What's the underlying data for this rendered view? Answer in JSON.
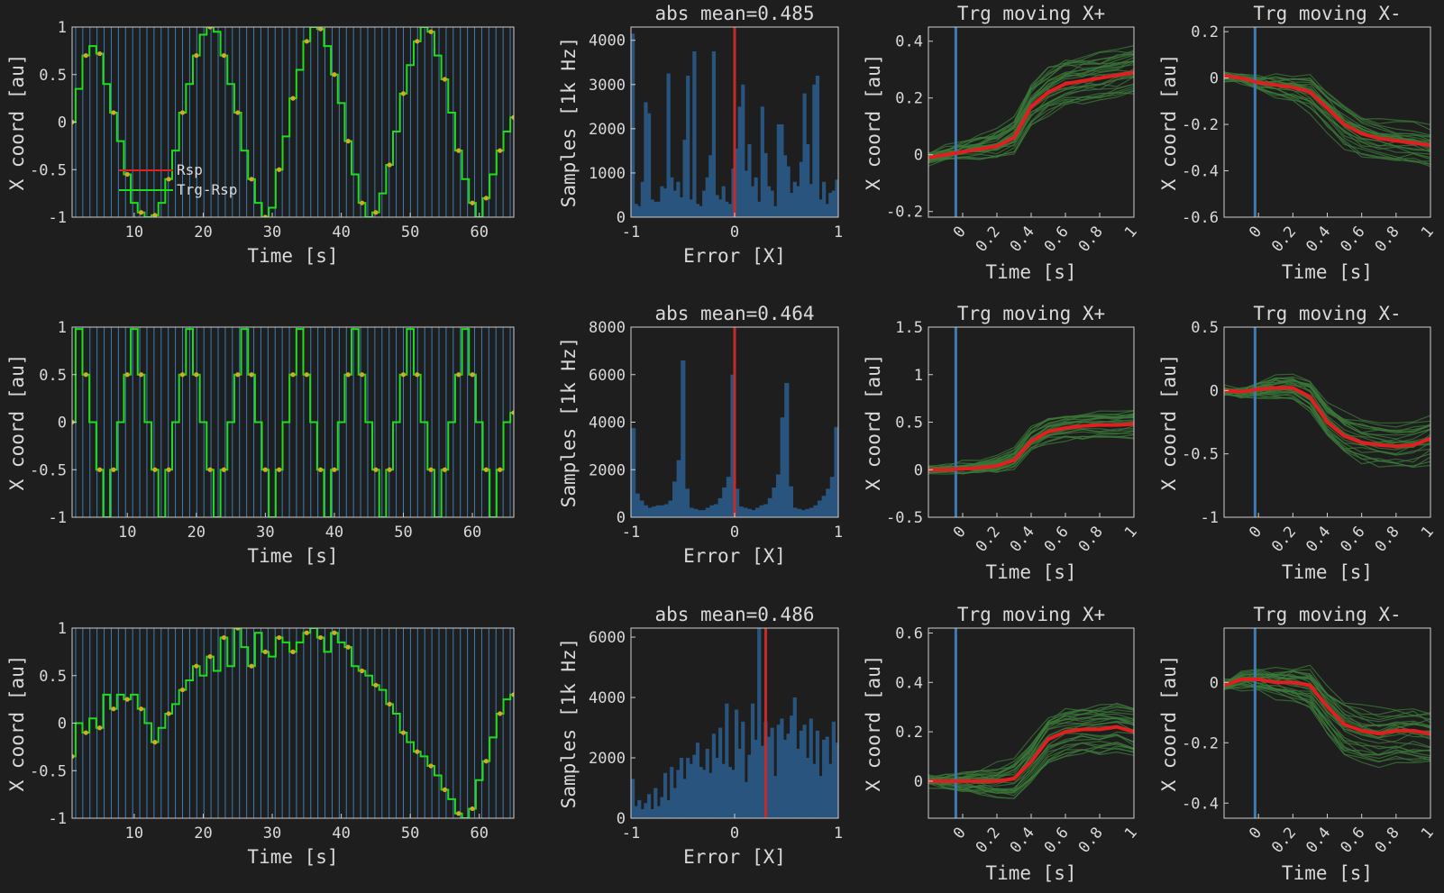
{
  "colors": {
    "background": "#1e1e1e",
    "axes_bg": "#1e1e1e",
    "axis": "#cfcfcf",
    "text": "#d9d9d9",
    "response": "#e02020",
    "target_trace": "#1fdc1f",
    "target_markers": "#d4aa22",
    "event_lines": "#3f88c5",
    "hist_bars": "#28547e",
    "hist_marker": "#c42a2a",
    "trials": "#3b7a3a",
    "mean_trace": "#e02020",
    "onset_line": "#3f7ab2"
  },
  "chart_data": [
    {
      "type": "line",
      "row": 1,
      "panel": "trace",
      "title": "",
      "xlabel": "Time [s]",
      "ylabel": "X coord [au]",
      "xlim": [
        1,
        65
      ],
      "ylim": [
        -1,
        1
      ],
      "xticks": [
        10,
        20,
        30,
        40,
        50,
        60
      ],
      "yticks": [
        -1,
        -0.5,
        0,
        0.5,
        1
      ],
      "ytick_labels": [
        "-1",
        "-0.5",
        "0",
        "0.5",
        "1"
      ],
      "legend": {
        "placement": "lower-left",
        "entries": [
          "Rsp",
          "Trg-Rsp"
        ]
      },
      "series": [
        {
          "name": "Trg-Rsp",
          "x": [
            1,
            2,
            3,
            4,
            5,
            6,
            7,
            8,
            9,
            10,
            11,
            12,
            13,
            14,
            15,
            16,
            17,
            18,
            19,
            20,
            21,
            22,
            23,
            24,
            25,
            26,
            27,
            28,
            29,
            30,
            31,
            32,
            33,
            34,
            35,
            36,
            37,
            38,
            39,
            40,
            41,
            42,
            43,
            44,
            45,
            46,
            47,
            48,
            49,
            50,
            51,
            52,
            53,
            54,
            55,
            56,
            57,
            58,
            59,
            60,
            61,
            62,
            63,
            64,
            65
          ],
          "y": [
            0,
            0.35,
            0.7,
            0.8,
            0.72,
            0.4,
            0.1,
            -0.2,
            -0.55,
            -0.85,
            -0.95,
            -1.0,
            -0.98,
            -0.85,
            -0.6,
            -0.3,
            0.1,
            0.4,
            0.7,
            0.92,
            1.0,
            0.95,
            0.7,
            0.4,
            0.1,
            -0.3,
            -0.6,
            -0.85,
            -1.0,
            -0.9,
            -0.5,
            -0.15,
            0.25,
            0.55,
            0.85,
            1.0,
            0.98,
            0.8,
            0.5,
            0.2,
            -0.2,
            -0.55,
            -0.85,
            -1.0,
            -0.95,
            -0.75,
            -0.45,
            -0.1,
            0.3,
            0.6,
            0.85,
            1.0,
            0.95,
            0.7,
            0.45,
            0.1,
            -0.3,
            -0.6,
            -0.85,
            -1.0,
            -0.8,
            -0.55,
            -0.3,
            -0.1,
            0.05
          ]
        }
      ]
    },
    {
      "type": "bar",
      "row": 1,
      "panel": "histogram",
      "title": "abs mean=0.485",
      "xlabel": "Error [X]",
      "ylabel": "Samples [1k Hz]",
      "xlim": [
        -1,
        1
      ],
      "ylim": [
        0,
        4300
      ],
      "xticks": [
        -1,
        0,
        1
      ],
      "yticks": [
        0,
        1000,
        2000,
        3000,
        4000
      ],
      "marker_x": 0,
      "values": [
        4150,
        300,
        250,
        800,
        2600,
        2350,
        400,
        350,
        350,
        700,
        650,
        3250,
        900,
        600,
        800,
        450,
        1750,
        3200,
        400,
        3750,
        300,
        250,
        600,
        900,
        1400,
        3750,
        500,
        400,
        700,
        350,
        300,
        1100,
        1550,
        2500,
        3000,
        1050,
        1650,
        700,
        900,
        350,
        2500,
        1450,
        700,
        600,
        250,
        2100,
        2100,
        1400,
        1150,
        550,
        800,
        700,
        1250,
        2800,
        1650,
        750,
        3000,
        3200,
        400,
        800,
        300,
        550,
        600,
        850
      ]
    },
    {
      "type": "line",
      "row": 1,
      "panel": "trg-plus",
      "title": "Trg moving X+",
      "xlabel": "Time [s]",
      "ylabel": "X coord [au]",
      "xlim": [
        -0.2,
        1
      ],
      "ylim": [
        -0.22,
        0.45
      ],
      "xticks": [
        0,
        0.2,
        0.4,
        0.6,
        0.8,
        1
      ],
      "yticks": [
        -0.2,
        0,
        0.2,
        0.4
      ],
      "ytick_labels": [
        "-0.2",
        "0",
        "0.2",
        "0.4"
      ],
      "onset_x": -0.04,
      "x": [
        -0.2,
        -0.1,
        0,
        0.1,
        0.2,
        0.3,
        0.4,
        0.5,
        0.6,
        0.7,
        0.8,
        0.9,
        1.0
      ],
      "mean": [
        -0.01,
        0,
        0.01,
        0.02,
        0.03,
        0.06,
        0.17,
        0.22,
        0.25,
        0.26,
        0.27,
        0.28,
        0.29
      ],
      "trial_count": 30,
      "trial_spread": 0.08
    },
    {
      "type": "line",
      "row": 1,
      "panel": "trg-minus",
      "title": "Trg moving X-",
      "xlabel": "Time [s]",
      "ylabel": "X coord [au]",
      "xlim": [
        -0.2,
        1
      ],
      "ylim": [
        -0.6,
        0.22
      ],
      "xticks": [
        0,
        0.2,
        0.4,
        0.6,
        0.8,
        1
      ],
      "yticks": [
        -0.6,
        -0.4,
        -0.2,
        0,
        0.2
      ],
      "ytick_labels": [
        "-0.6",
        "-0.4",
        "-0.2",
        "0",
        "0.2"
      ],
      "onset_x": -0.02,
      "x": [
        -0.2,
        -0.1,
        0,
        0.1,
        0.2,
        0.3,
        0.4,
        0.5,
        0.6,
        0.7,
        0.8,
        0.9,
        1.0
      ],
      "mean": [
        0.01,
        0,
        -0.02,
        -0.03,
        -0.04,
        -0.06,
        -0.13,
        -0.2,
        -0.24,
        -0.26,
        -0.27,
        -0.28,
        -0.29
      ],
      "trial_count": 25,
      "trial_spread": 0.09
    },
    {
      "type": "line",
      "row": 2,
      "panel": "trace",
      "title": "",
      "xlabel": "Time [s]",
      "ylabel": "X coord [au]",
      "xlim": [
        2,
        66
      ],
      "ylim": [
        -1,
        1
      ],
      "xticks": [
        10,
        20,
        30,
        40,
        50,
        60
      ],
      "yticks": [
        -1,
        -0.5,
        0,
        0.5,
        1
      ],
      "ytick_labels": [
        "-1",
        "-0.5",
        "0",
        "0.5",
        "1"
      ],
      "series": [
        {
          "name": "Trg-Rsp",
          "x": [
            2,
            3,
            4,
            5,
            6,
            7,
            8,
            9,
            10,
            11,
            12,
            13,
            14,
            15,
            16,
            17,
            18,
            19,
            20,
            21,
            22,
            23,
            24,
            25,
            26,
            27,
            28,
            29,
            30,
            31,
            32,
            33,
            34,
            35,
            36,
            37,
            38,
            39,
            40,
            41,
            42,
            43,
            44,
            45,
            46,
            47,
            48,
            49,
            50,
            51,
            52,
            53,
            54,
            55,
            56,
            57,
            58,
            59,
            60,
            61,
            62,
            63,
            64,
            65,
            66
          ],
          "y": [
            0,
            0.98,
            0.5,
            0,
            -0.5,
            -1,
            -0.5,
            0,
            0.5,
            0.98,
            0.5,
            0,
            -0.5,
            -1,
            -0.5,
            0,
            0.5,
            0.98,
            0.5,
            0,
            -0.5,
            -1,
            -0.5,
            0,
            0.5,
            0.98,
            0.5,
            0,
            -0.5,
            -1,
            -0.5,
            0,
            0.5,
            0.98,
            0.5,
            0,
            -0.5,
            -1,
            -0.5,
            0,
            0.5,
            0.98,
            0.5,
            0,
            -0.5,
            -1,
            -0.5,
            0,
            0.5,
            0.98,
            0.5,
            0,
            -0.5,
            -1,
            -0.5,
            0,
            0.5,
            0.98,
            0.5,
            0,
            -0.5,
            -1,
            -0.5,
            0,
            0.1
          ]
        }
      ]
    },
    {
      "type": "bar",
      "row": 2,
      "panel": "histogram",
      "title": "abs mean=0.464",
      "xlabel": "Error [X]",
      "ylabel": "Samples [1k Hz]",
      "xlim": [
        -1,
        1
      ],
      "ylim": [
        0,
        8000
      ],
      "xticks": [
        -1,
        0,
        1
      ],
      "yticks": [
        0,
        2000,
        4000,
        6000,
        8000
      ],
      "marker_x": 0,
      "values": [
        3750,
        1000,
        700,
        500,
        400,
        450,
        500,
        500,
        550,
        700,
        1500,
        2400,
        6600,
        1200,
        400,
        350,
        300,
        300,
        400,
        500,
        550,
        800,
        1250,
        1700,
        6000,
        1200,
        450,
        400,
        350,
        300,
        400,
        500,
        550,
        800,
        1250,
        1800,
        4200,
        5650,
        1300,
        400,
        350,
        300,
        350,
        400,
        500,
        700,
        900,
        1200,
        1700,
        3800
      ]
    },
    {
      "type": "line",
      "row": 2,
      "panel": "trg-plus",
      "title": "Trg moving X+",
      "xlabel": "Time [s]",
      "ylabel": "X coord [au]",
      "xlim": [
        -0.2,
        1
      ],
      "ylim": [
        -0.5,
        1.5
      ],
      "xticks": [
        0,
        0.2,
        0.4,
        0.6,
        0.8,
        1
      ],
      "yticks": [
        -0.5,
        0,
        0.5,
        1,
        1.5
      ],
      "ytick_labels": [
        "-0.5",
        "0",
        "0.5",
        "1",
        "1.5"
      ],
      "onset_x": -0.04,
      "x": [
        -0.2,
        -0.1,
        0,
        0.1,
        0.2,
        0.3,
        0.4,
        0.5,
        0.6,
        0.7,
        0.8,
        0.9,
        1.0
      ],
      "mean": [
        0,
        0,
        0.01,
        0.02,
        0.04,
        0.1,
        0.3,
        0.4,
        0.44,
        0.46,
        0.47,
        0.47,
        0.48
      ],
      "trial_count": 25,
      "trial_spread": 0.15
    },
    {
      "type": "line",
      "row": 2,
      "panel": "trg-minus",
      "title": "Trg moving X-",
      "xlabel": "Time [s]",
      "ylabel": "X coord [au]",
      "xlim": [
        -0.2,
        1
      ],
      "ylim": [
        -1,
        0.5
      ],
      "xticks": [
        0,
        0.2,
        0.4,
        0.6,
        0.8,
        1
      ],
      "yticks": [
        -1,
        -0.5,
        0,
        0.5
      ],
      "ytick_labels": [
        "-1",
        "-0.5",
        "0",
        "0.5"
      ],
      "onset_x": -0.02,
      "x": [
        -0.2,
        -0.1,
        0,
        0.1,
        0.2,
        0.3,
        0.4,
        0.5,
        0.6,
        0.7,
        0.8,
        0.9,
        1.0
      ],
      "mean": [
        0,
        -0.01,
        0.01,
        0.02,
        0.02,
        -0.05,
        -0.25,
        -0.36,
        -0.41,
        -0.43,
        -0.44,
        -0.43,
        -0.38
      ],
      "trial_count": 25,
      "trial_spread": 0.18
    },
    {
      "type": "line",
      "row": 3,
      "panel": "trace",
      "title": "",
      "xlabel": "Time [s]",
      "ylabel": "X coord [au]",
      "xlim": [
        1,
        65
      ],
      "ylim": [
        -1,
        1
      ],
      "xticks": [
        10,
        20,
        30,
        40,
        50,
        60
      ],
      "yticks": [
        -1,
        -0.5,
        0,
        0.5,
        1
      ],
      "ytick_labels": [
        "-1",
        "-0.5",
        "0",
        "0.5",
        "1"
      ],
      "series": [
        {
          "name": "Trg-Rsp",
          "x": [
            1,
            2,
            3,
            4,
            5,
            6,
            7,
            8,
            9,
            10,
            11,
            12,
            13,
            14,
            15,
            16,
            17,
            18,
            19,
            20,
            21,
            22,
            23,
            24,
            25,
            26,
            27,
            28,
            29,
            30,
            31,
            32,
            33,
            34,
            35,
            36,
            37,
            38,
            39,
            40,
            41,
            42,
            43,
            44,
            45,
            46,
            47,
            48,
            49,
            50,
            51,
            52,
            53,
            54,
            55,
            56,
            57,
            58,
            59,
            60,
            61,
            62,
            63,
            64,
            65
          ],
          "y": [
            -0.35,
            0,
            -0.1,
            0.05,
            -0.05,
            0.3,
            0.15,
            0.3,
            0.25,
            0.3,
            0.15,
            0,
            -0.2,
            -0.05,
            0.1,
            0.2,
            0.35,
            0.45,
            0.6,
            0.5,
            0.7,
            0.55,
            0.9,
            0.6,
            1.0,
            0.8,
            0.6,
            0.95,
            0.75,
            0.7,
            0.9,
            0.85,
            0.75,
            0.85,
            0.95,
            1.0,
            0.9,
            0.75,
            0.95,
            0.85,
            0.8,
            0.6,
            0.55,
            0.5,
            0.4,
            0.35,
            0.2,
            0.1,
            -0.1,
            -0.2,
            -0.3,
            -0.35,
            -0.45,
            -0.55,
            -0.7,
            -0.8,
            -0.95,
            -1.0,
            -0.9,
            -0.6,
            -0.4,
            -0.15,
            0.1,
            0.25,
            0.3
          ]
        }
      ]
    },
    {
      "type": "bar",
      "row": 3,
      "panel": "histogram",
      "title": "abs mean=0.486",
      "xlabel": "Error [X]",
      "ylabel": "Samples [1k Hz]",
      "xlim": [
        -1,
        1
      ],
      "ylim": [
        0,
        6300
      ],
      "xticks": [
        -1,
        0,
        1
      ],
      "yticks": [
        0,
        2000,
        4000,
        6000
      ],
      "marker_x": 0.3,
      "values": [
        1300,
        400,
        600,
        300,
        500,
        800,
        300,
        1000,
        400,
        700,
        1500,
        600,
        1700,
        1000,
        1600,
        2000,
        1300,
        2000,
        1800,
        2100,
        2500,
        1700,
        1600,
        2300,
        1500,
        2800,
        2000,
        3000,
        1800,
        3800,
        1700,
        1600,
        3600,
        2300,
        3200,
        1200,
        2100,
        3800,
        2600,
        6300,
        2400,
        3200,
        2700,
        3000,
        1400,
        3100,
        3300,
        2600,
        2800,
        3400,
        4000,
        2300,
        2900,
        3100,
        2000,
        3300,
        1800,
        2900,
        1400,
        2600,
        2700,
        1800,
        3200,
        2500
      ]
    },
    {
      "type": "line",
      "row": 3,
      "panel": "trg-plus",
      "title": "Trg moving X+",
      "xlabel": "Time [s]",
      "ylabel": "X coord [au]",
      "xlim": [
        -0.2,
        1
      ],
      "ylim": [
        -0.15,
        0.62
      ],
      "xticks": [
        0,
        0.2,
        0.4,
        0.6,
        0.8,
        1
      ],
      "yticks": [
        0,
        0.2,
        0.4,
        0.6
      ],
      "ytick_labels": [
        "0",
        "0.2",
        "0.4",
        "0.6"
      ],
      "onset_x": -0.04,
      "x": [
        -0.2,
        -0.1,
        0,
        0.1,
        0.2,
        0.3,
        0.4,
        0.5,
        0.6,
        0.7,
        0.8,
        0.9,
        1.0
      ],
      "mean": [
        0,
        0,
        0,
        0,
        0,
        0.01,
        0.08,
        0.17,
        0.2,
        0.21,
        0.21,
        0.22,
        0.2
      ],
      "trial_count": 30,
      "trial_spread": 0.09
    },
    {
      "type": "line",
      "row": 3,
      "panel": "trg-minus",
      "title": "Trg moving X-",
      "xlabel": "Time [s]",
      "ylabel": "X coord [au]",
      "xlim": [
        -0.2,
        1
      ],
      "ylim": [
        -0.45,
        0.18
      ],
      "xticks": [
        0,
        0.2,
        0.4,
        0.6,
        0.8,
        1
      ],
      "yticks": [
        -0.4,
        -0.2,
        0
      ],
      "ytick_labels": [
        "-0.4",
        "-0.2",
        "0"
      ],
      "onset_x": -0.02,
      "x": [
        -0.2,
        -0.1,
        0,
        0.1,
        0.2,
        0.3,
        0.4,
        0.5,
        0.6,
        0.7,
        0.8,
        0.9,
        1.0
      ],
      "mean": [
        -0.01,
        0.01,
        0.01,
        0,
        0,
        -0.01,
        -0.08,
        -0.14,
        -0.16,
        -0.17,
        -0.16,
        -0.16,
        -0.17
      ],
      "trial_count": 28,
      "trial_spread": 0.09
    }
  ]
}
